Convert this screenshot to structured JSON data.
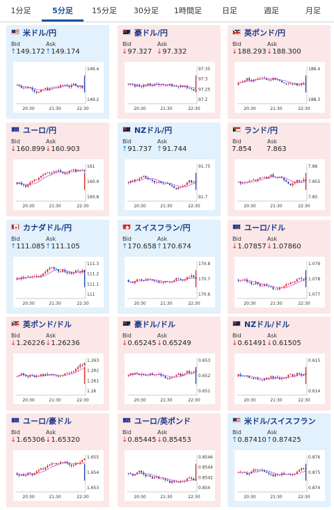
{
  "tabs": [
    {
      "label": "1分足",
      "active": false
    },
    {
      "label": "5分足",
      "active": true
    },
    {
      "label": "15分足",
      "active": false
    },
    {
      "label": "30分足",
      "active": false
    },
    {
      "label": "1時間足",
      "active": false
    },
    {
      "label": "日足",
      "active": false
    },
    {
      "label": "週足",
      "active": false
    },
    {
      "label": "月足",
      "active": false
    }
  ],
  "bid_label": "Bid",
  "ask_label": "Ask",
  "x_ticks": [
    "20:30",
    "21:30",
    "22:30"
  ],
  "cards": [
    {
      "pair": "米ドル/円",
      "flag": "us",
      "trend": "up",
      "bid": "149.172",
      "ask": "149.174",
      "bid_dir": "up",
      "ask_dir": "up",
      "y_ticks": [
        "149.4",
        "149.2"
      ]
    },
    {
      "pair": "豪ドル/円",
      "flag": "au",
      "trend": "down",
      "bid": "97.327",
      "ask": "97.332",
      "bid_dir": "down",
      "ask_dir": "down",
      "y_ticks": [
        "97.35",
        "97.3",
        "97.25",
        "97.2"
      ]
    },
    {
      "pair": "英ポンド/円",
      "flag": "gb",
      "trend": "down",
      "bid": "188.293",
      "ask": "188.300",
      "bid_dir": "down",
      "ask_dir": "down",
      "y_ticks": [
        "188.4",
        "188.3"
      ]
    },
    {
      "pair": "ユーロ/円",
      "flag": "eu",
      "trend": "down",
      "bid": "160.899",
      "ask": "160.903",
      "bid_dir": "down",
      "ask_dir": "down",
      "y_ticks": [
        "161",
        "160.9",
        "160.8"
      ]
    },
    {
      "pair": "NZドル/円",
      "flag": "nz",
      "trend": "up",
      "bid": "91.737",
      "ask": "91.744",
      "bid_dir": "up",
      "ask_dir": "up",
      "y_ticks": [
        "91.75",
        "91.7"
      ]
    },
    {
      "pair": "ランド/円",
      "flag": "za",
      "trend": "down",
      "bid": "7.854",
      "ask": "7.863",
      "bid_dir": "none",
      "ask_dir": "none",
      "y_ticks": [
        "7.86",
        "7.855",
        "7.85"
      ]
    },
    {
      "pair": "カナダドル/円",
      "flag": "ca",
      "trend": "up",
      "bid": "111.085",
      "ask": "111.105",
      "bid_dir": "up",
      "ask_dir": "up",
      "y_ticks": [
        "111.3",
        "111.2",
        "111.1",
        "111"
      ]
    },
    {
      "pair": "スイスフラン/円",
      "flag": "ch",
      "trend": "up",
      "bid": "170.658",
      "ask": "170.674",
      "bid_dir": "up",
      "ask_dir": "up",
      "y_ticks": [
        "170.8",
        "170.7",
        "170.6"
      ]
    },
    {
      "pair": "ユーロ/ドル",
      "flag": "eu",
      "trend": "down",
      "bid": "1.07857",
      "ask": "1.07860",
      "bid_dir": "down",
      "ask_dir": "down",
      "y_ticks": [
        "1.079",
        "1.078",
        "1.077"
      ]
    },
    {
      "pair": "英ポンド/ドル",
      "flag": "gb",
      "trend": "down",
      "bid": "1.26226",
      "ask": "1.26236",
      "bid_dir": "down",
      "ask_dir": "down",
      "y_ticks": [
        "1.263",
        "1.262",
        "1.261",
        "1.26"
      ]
    },
    {
      "pair": "豪ドル/ドル",
      "flag": "au",
      "trend": "down",
      "bid": "0.65245",
      "ask": "0.65249",
      "bid_dir": "down",
      "ask_dir": "down",
      "y_ticks": [
        "0.653",
        "0.652",
        "0.651"
      ]
    },
    {
      "pair": "NZドル/ドル",
      "flag": "nz",
      "trend": "down",
      "bid": "0.61491",
      "ask": "0.61505",
      "bid_dir": "down",
      "ask_dir": "down",
      "y_ticks": [
        "0.615",
        "0.614"
      ]
    },
    {
      "pair": "ユーロ/豪ドル",
      "flag": "eu",
      "trend": "down",
      "bid": "1.65306",
      "ask": "1.65320",
      "bid_dir": "down",
      "ask_dir": "down",
      "y_ticks": [
        "1.655",
        "1.654",
        "1.653"
      ]
    },
    {
      "pair": "ユーロ/英ポンド",
      "flag": "eu",
      "trend": "down",
      "bid": "0.85445",
      "ask": "0.85453",
      "bid_dir": "down",
      "ask_dir": "down",
      "y_ticks": [
        "0.8546",
        "0.8544",
        "0.8542",
        "0.854"
      ]
    },
    {
      "pair": "米ドル/スイスフラン",
      "flag": "us",
      "trend": "up",
      "bid": "0.87410",
      "ask": "0.87425",
      "bid_dir": "up",
      "ask_dir": "up",
      "y_ticks": [
        "0.876",
        "0.875",
        "0.874"
      ]
    }
  ]
}
